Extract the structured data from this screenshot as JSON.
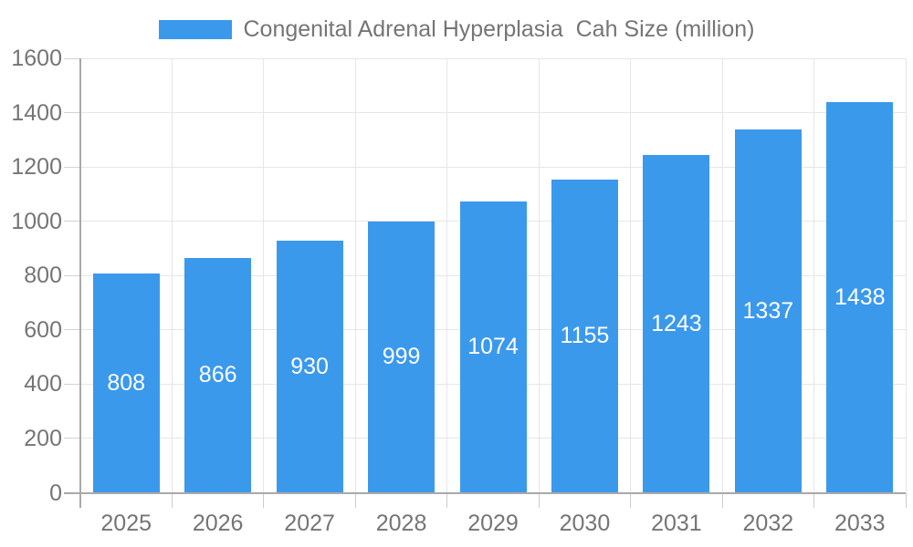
{
  "legend": {
    "label": "Congenital Adrenal Hyperplasia  Cah Size (million)"
  },
  "chart_data": {
    "type": "bar",
    "title": "Congenital Adrenal Hyperplasia  Cah Size (million)",
    "categories": [
      "2025",
      "2026",
      "2027",
      "2028",
      "2029",
      "2030",
      "2031",
      "2032",
      "2033"
    ],
    "values": [
      808,
      866,
      930,
      999,
      1074,
      1155,
      1243,
      1337,
      1438
    ],
    "value_labels": [
      "808",
      "866",
      "930",
      "999",
      "1074",
      "1155",
      "1243",
      "1337",
      "1438"
    ],
    "xlabel": "",
    "ylabel": "",
    "ylim": [
      0,
      1600
    ],
    "yticks": [
      0,
      200,
      400,
      600,
      800,
      1000,
      1200,
      1400,
      1600
    ],
    "grid": true,
    "legend_position": "top",
    "colors": {
      "bar": "#3b99ec",
      "value_label": "#ffffff",
      "axis_label": "#757575",
      "grid_line": "#e6e6e6",
      "axis_line": "#a9a9a9"
    }
  }
}
